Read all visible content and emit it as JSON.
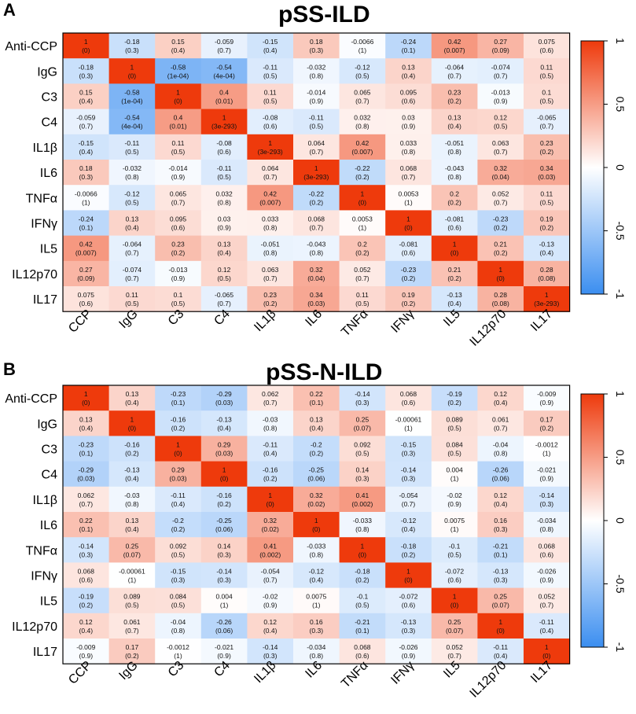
{
  "figure_note": "Correlation heatmaps (r, with p-value in parentheses)",
  "chart_data": [
    {
      "type": "heatmap",
      "panel_label": "A",
      "title": "pSS-ILD",
      "row_labels": [
        "Anti-CCP",
        "IgG",
        "C3",
        "C4",
        "IL1β",
        "IL6",
        "TNFα",
        "IFNγ",
        "IL5",
        "IL12p70",
        "IL17"
      ],
      "col_labels": [
        "CCP",
        "IgG",
        "C3",
        "C4",
        "IL1β",
        "IL6",
        "TNFα",
        "IFNγ",
        "IL5",
        "IL12p70",
        "IL17"
      ],
      "color_scale": {
        "min": -1,
        "max": 1,
        "low": "#3b8ef0",
        "mid": "#ffffff",
        "high": "#ee3a0c",
        "ticks": [
          "1",
          "0.5",
          "0",
          "-0.5",
          "-1"
        ]
      },
      "r": [
        [
          "1",
          "-0.18",
          "0.15",
          "-0.059",
          "-0.15",
          "0.18",
          "-0.0066",
          "-0.24",
          "0.42",
          "0.27",
          "0.075"
        ],
        [
          "-0.18",
          "1",
          "-0.58",
          "-0.54",
          "-0.11",
          "-0.032",
          "-0.12",
          "0.13",
          "-0.064",
          "-0.074",
          "0.11"
        ],
        [
          "0.15",
          "-0.58",
          "1",
          "0.4",
          "0.11",
          "-0.014",
          "0.065",
          "0.095",
          "0.23",
          "-0.013",
          "0.1"
        ],
        [
          "-0.059",
          "-0.54",
          "0.4",
          "1",
          "-0.08",
          "-0.11",
          "0.032",
          "0.03",
          "0.13",
          "0.12",
          "-0.065"
        ],
        [
          "-0.15",
          "-0.11",
          "0.11",
          "-0.08",
          "1",
          "0.064",
          "0.42",
          "0.033",
          "-0.051",
          "0.063",
          "0.23"
        ],
        [
          "0.18",
          "-0.032",
          "-0.014",
          "-0.11",
          "0.064",
          "1",
          "-0.22",
          "0.068",
          "-0.043",
          "0.32",
          "0.34"
        ],
        [
          "-0.0066",
          "-0.12",
          "0.065",
          "0.032",
          "0.42",
          "-0.22",
          "1",
          "0.0053",
          "0.2",
          "0.052",
          "0.11"
        ],
        [
          "-0.24",
          "0.13",
          "0.095",
          "0.03",
          "0.033",
          "0.068",
          "0.0053",
          "1",
          "-0.081",
          "-0.23",
          "0.19"
        ],
        [
          "0.42",
          "-0.064",
          "0.23",
          "0.13",
          "-0.051",
          "-0.043",
          "0.2",
          "-0.081",
          "1",
          "0.21",
          "-0.13"
        ],
        [
          "0.27",
          "-0.074",
          "-0.013",
          "0.12",
          "0.063",
          "0.32",
          "0.052",
          "-0.23",
          "0.21",
          "1",
          "0.28"
        ],
        [
          "0.075",
          "0.11",
          "0.1",
          "-0.065",
          "0.23",
          "0.34",
          "0.11",
          "0.19",
          "-0.13",
          "0.28",
          "1"
        ]
      ],
      "p": [
        [
          "(0)",
          "(0.3)",
          "(0.4)",
          "(0.7)",
          "(0.4)",
          "(0.3)",
          "(1)",
          "(0.1)",
          "(0.007)",
          "(0.09)",
          "(0.6)"
        ],
        [
          "(0.3)",
          "(0)",
          "(1e-04)",
          "(4e-04)",
          "(0.5)",
          "(0.8)",
          "(0.5)",
          "(0.4)",
          "(0.7)",
          "(0.7)",
          "(0.5)"
        ],
        [
          "(0.4)",
          "(1e-04)",
          "(0)",
          "(0.01)",
          "(0.5)",
          "(0.9)",
          "(0.7)",
          "(0.6)",
          "(0.2)",
          "(0.9)",
          "(0.5)"
        ],
        [
          "(0.7)",
          "(4e-04)",
          "(0.01)",
          "(3e-293)",
          "(0.6)",
          "(0.5)",
          "(0.8)",
          "(0.9)",
          "(0.4)",
          "(0.5)",
          "(0.7)"
        ],
        [
          "(0.4)",
          "(0.5)",
          "(0.5)",
          "(0.6)",
          "(3e-293)",
          "(0.7)",
          "(0.007)",
          "(0.8)",
          "(0.8)",
          "(0.7)",
          "(0.2)"
        ],
        [
          "(0.3)",
          "(0.8)",
          "(0.9)",
          "(0.5)",
          "(0.7)",
          "(3e-293)",
          "(0.2)",
          "(0.7)",
          "(0.8)",
          "(0.04)",
          "(0.03)"
        ],
        [
          "(1)",
          "(0.5)",
          "(0.7)",
          "(0.8)",
          "(0.007)",
          "(0.2)",
          "(0)",
          "(1)",
          "(0.2)",
          "(0.7)",
          "(0.5)"
        ],
        [
          "(0.1)",
          "(0.4)",
          "(0.6)",
          "(0.9)",
          "(0.8)",
          "(0.7)",
          "(1)",
          "(0)",
          "(0.6)",
          "(0.2)",
          "(0.2)"
        ],
        [
          "(0.007)",
          "(0.7)",
          "(0.2)",
          "(0.4)",
          "(0.8)",
          "(0.8)",
          "(0.2)",
          "(0.6)",
          "(0)",
          "(0.2)",
          "(0.4)"
        ],
        [
          "(0.09)",
          "(0.7)",
          "(0.9)",
          "(0.5)",
          "(0.7)",
          "(0.04)",
          "(0.7)",
          "(0.2)",
          "(0.2)",
          "(0)",
          "(0.08)"
        ],
        [
          "(0.6)",
          "(0.5)",
          "(0.5)",
          "(0.7)",
          "(0.2)",
          "(0.03)",
          "(0.5)",
          "(0.2)",
          "(0.4)",
          "(0.08)",
          "(3e-293)"
        ]
      ]
    },
    {
      "type": "heatmap",
      "panel_label": "B",
      "title": "pSS-N-ILD",
      "row_labels": [
        "Anti-CCP",
        "IgG",
        "C3",
        "C4",
        "IL1β",
        "IL6",
        "TNFα",
        "IFNγ",
        "IL5",
        "IL12p70",
        "IL17"
      ],
      "col_labels": [
        "CCP",
        "IgG",
        "C3",
        "C4",
        "IL1β",
        "IL6",
        "TNFα",
        "IFNγ",
        "IL5",
        "IL12p70",
        "IL17"
      ],
      "color_scale": {
        "min": -1,
        "max": 1,
        "low": "#3b8ef0",
        "mid": "#ffffff",
        "high": "#ee3a0c",
        "ticks": [
          "1",
          "0.5",
          "0",
          "-0.5",
          "-1"
        ]
      },
      "r": [
        [
          "1",
          "0.13",
          "-0.23",
          "-0.29",
          "0.062",
          "0.22",
          "-0.14",
          "0.068",
          "-0.19",
          "0.12",
          "-0.009"
        ],
        [
          "0.13",
          "1",
          "-0.16",
          "-0.13",
          "-0.03",
          "0.13",
          "0.25",
          "-0.00061",
          "0.089",
          "0.061",
          "0.17"
        ],
        [
          "-0.23",
          "-0.16",
          "1",
          "0.29",
          "-0.11",
          "-0.2",
          "0.092",
          "-0.15",
          "0.084",
          "-0.04",
          "-0.0012"
        ],
        [
          "-0.29",
          "-0.13",
          "0.29",
          "1",
          "-0.16",
          "-0.25",
          "0.14",
          "-0.14",
          "0.004",
          "-0.26",
          "-0.021"
        ],
        [
          "0.062",
          "-0.03",
          "-0.11",
          "-0.16",
          "1",
          "0.32",
          "0.41",
          "-0.054",
          "-0.02",
          "0.12",
          "-0.14"
        ],
        [
          "0.22",
          "0.13",
          "-0.2",
          "-0.25",
          "0.32",
          "1",
          "-0.033",
          "-0.12",
          "0.0075",
          "0.16",
          "-0.034"
        ],
        [
          "-0.14",
          "0.25",
          "0.092",
          "0.14",
          "0.41",
          "-0.033",
          "1",
          "-0.18",
          "-0.1",
          "-0.21",
          "0.068"
        ],
        [
          "0.068",
          "-0.00061",
          "-0.15",
          "-0.14",
          "-0.054",
          "-0.12",
          "-0.18",
          "1",
          "-0.072",
          "-0.13",
          "-0.026"
        ],
        [
          "-0.19",
          "0.089",
          "0.084",
          "0.004",
          "-0.02",
          "0.0075",
          "-0.1",
          "-0.072",
          "1",
          "0.25",
          "0.052"
        ],
        [
          "0.12",
          "0.061",
          "-0.04",
          "-0.26",
          "0.12",
          "0.16",
          "-0.21",
          "-0.13",
          "0.25",
          "1",
          "-0.11"
        ],
        [
          "-0.009",
          "0.17",
          "-0.0012",
          "-0.021",
          "-0.14",
          "-0.034",
          "0.068",
          "-0.026",
          "0.052",
          "-0.11",
          "1"
        ]
      ],
      "p": [
        [
          "(0)",
          "(0.4)",
          "(0.1)",
          "(0.03)",
          "(0.7)",
          "(0.1)",
          "(0.3)",
          "(0.6)",
          "(0.2)",
          "(0.4)",
          "(0.9)"
        ],
        [
          "(0.4)",
          "(0)",
          "(0.2)",
          "(0.4)",
          "(0.8)",
          "(0.4)",
          "(0.07)",
          "(1)",
          "(0.5)",
          "(0.7)",
          "(0.2)"
        ],
        [
          "(0.1)",
          "(0.2)",
          "(0)",
          "(0.03)",
          "(0.4)",
          "(0.2)",
          "(0.5)",
          "(0.3)",
          "(0.5)",
          "(0.8)",
          "(1)"
        ],
        [
          "(0.03)",
          "(0.4)",
          "(0.03)",
          "(0)",
          "(0.2)",
          "(0.06)",
          "(0.3)",
          "(0.3)",
          "(1)",
          "(0.06)",
          "(0.9)"
        ],
        [
          "(0.7)",
          "(0.8)",
          "(0.4)",
          "(0.2)",
          "(0)",
          "(0.02)",
          "(0.002)",
          "(0.7)",
          "(0.9)",
          "(0.4)",
          "(0.3)"
        ],
        [
          "(0.1)",
          "(0.4)",
          "(0.2)",
          "(0.06)",
          "(0.02)",
          "(0)",
          "(0.8)",
          "(0.4)",
          "(1)",
          "(0.3)",
          "(0.8)"
        ],
        [
          "(0.3)",
          "(0.07)",
          "(0.5)",
          "(0.3)",
          "(0.002)",
          "(0.8)",
          "(0)",
          "(0.2)",
          "(0.5)",
          "(0.1)",
          "(0.6)"
        ],
        [
          "(0.6)",
          "(1)",
          "(0.3)",
          "(0.3)",
          "(0.7)",
          "(0.4)",
          "(0.2)",
          "(0)",
          "(0.6)",
          "(0.3)",
          "(0.9)"
        ],
        [
          "(0.2)",
          "(0.5)",
          "(0.5)",
          "(1)",
          "(0.9)",
          "(1)",
          "(0.5)",
          "(0.6)",
          "(0)",
          "(0.07)",
          "(0.7)"
        ],
        [
          "(0.4)",
          "(0.7)",
          "(0.8)",
          "(0.06)",
          "(0.4)",
          "(0.3)",
          "(0.1)",
          "(0.3)",
          "(0.07)",
          "(0)",
          "(0.4)"
        ],
        [
          "(0.9)",
          "(0.2)",
          "(1)",
          "(0.9)",
          "(0.3)",
          "(0.8)",
          "(0.6)",
          "(0.9)",
          "(0.7)",
          "(0.4)",
          "(0)"
        ]
      ]
    }
  ]
}
